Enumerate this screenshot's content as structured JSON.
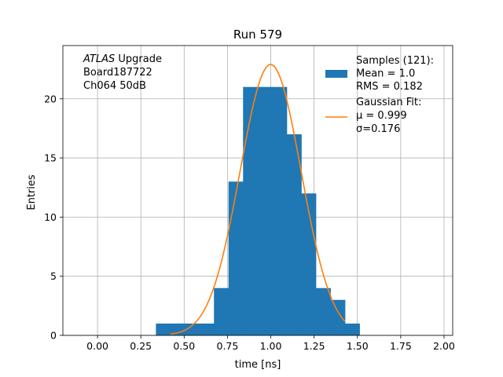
{
  "chart_data": {
    "type": "bar",
    "title": "Run 579",
    "xlabel": "time [ns]",
    "ylabel": "Entries",
    "xlim": [
      -0.2,
      2.05
    ],
    "ylim": [
      0,
      24.5
    ],
    "xticks": [
      0.0,
      0.25,
      0.5,
      0.75,
      1.0,
      1.25,
      1.5,
      1.75,
      2.0
    ],
    "xtick_labels": [
      "0.00",
      "0.25",
      "0.50",
      "0.75",
      "1.00",
      "1.25",
      "1.50",
      "1.75",
      "2.00"
    ],
    "yticks": [
      0,
      5,
      10,
      15,
      20
    ],
    "ytick_labels": [
      "0",
      "5",
      "10",
      "15",
      "20"
    ],
    "grid": true,
    "colors": {
      "histogram": "#1f77b4",
      "fit": "#ff7f0e",
      "grid": "#b0b0b0"
    },
    "histogram": {
      "bin_edges": [
        0.337,
        0.42,
        0.504,
        0.588,
        0.672,
        0.756,
        0.84,
        0.924,
        1.008,
        1.092,
        1.176,
        1.26,
        1.344,
        1.428,
        1.512
      ],
      "counts": [
        1,
        1,
        1,
        1,
        4,
        13,
        21,
        21,
        21,
        17,
        12,
        4,
        3,
        1
      ]
    },
    "fit": {
      "mu": 0.999,
      "sigma": 0.176,
      "amplitude": 22.9,
      "x_range": [
        0.42,
        1.428
      ]
    },
    "annotation": {
      "lines": [
        {
          "italic": "ATLAS",
          "text": " Upgrade"
        },
        {
          "italic": "",
          "text": " Board187722"
        },
        {
          "italic": "",
          "text": " Ch064 50dB"
        }
      ]
    },
    "legend": {
      "position": "top-right",
      "entries": [
        {
          "kind": "patch",
          "lines": [
            "Samples (121):",
            " Mean = 1.0",
            " RMS = 0.182"
          ]
        },
        {
          "kind": "line",
          "lines": [
            "Gaussian Fit:",
            " μ = 0.999",
            " σ=0.176"
          ]
        }
      ]
    }
  }
}
